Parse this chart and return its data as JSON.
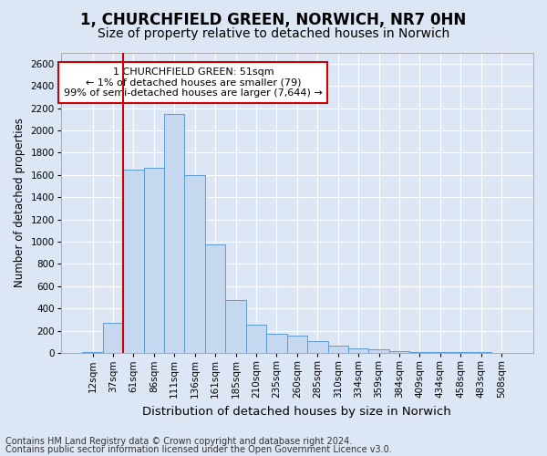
{
  "title1": "1, CHURCHFIELD GREEN, NORWICH, NR7 0HN",
  "title2": "Size of property relative to detached houses in Norwich",
  "xlabel": "Distribution of detached houses by size in Norwich",
  "ylabel": "Number of detached properties",
  "categories": [
    "12sqm",
    "37sqm",
    "61sqm",
    "86sqm",
    "111sqm",
    "136sqm",
    "161sqm",
    "185sqm",
    "210sqm",
    "235sqm",
    "260sqm",
    "285sqm",
    "310sqm",
    "334sqm",
    "359sqm",
    "384sqm",
    "409sqm",
    "434sqm",
    "458sqm",
    "483sqm",
    "508sqm"
  ],
  "values": [
    5,
    270,
    1650,
    1660,
    2150,
    1600,
    975,
    475,
    255,
    175,
    160,
    110,
    65,
    45,
    30,
    20,
    10,
    10,
    5,
    5,
    2
  ],
  "bar_color": "#c5d8f0",
  "bar_edge_color": "#5b9bd5",
  "vline_color": "#cc0000",
  "vline_x_index": 1.5,
  "annotation_text": "1 CHURCHFIELD GREEN: 51sqm\n← 1% of detached houses are smaller (79)\n99% of semi-detached houses are larger (7,644) →",
  "annotation_box_facecolor": "#ffffff",
  "annotation_box_edgecolor": "#cc0000",
  "ylim": [
    0,
    2700
  ],
  "yticks": [
    0,
    200,
    400,
    600,
    800,
    1000,
    1200,
    1400,
    1600,
    1800,
    2000,
    2200,
    2400,
    2600
  ],
  "footer1": "Contains HM Land Registry data © Crown copyright and database right 2024.",
  "footer2": "Contains public sector information licensed under the Open Government Licence v3.0.",
  "bg_color": "#dce6f5",
  "plot_bg_color": "#dce6f5",
  "title1_fontsize": 12,
  "title2_fontsize": 10,
  "xlabel_fontsize": 9.5,
  "ylabel_fontsize": 8.5,
  "tick_fontsize": 7.5,
  "annotation_fontsize": 8,
  "footer_fontsize": 7
}
